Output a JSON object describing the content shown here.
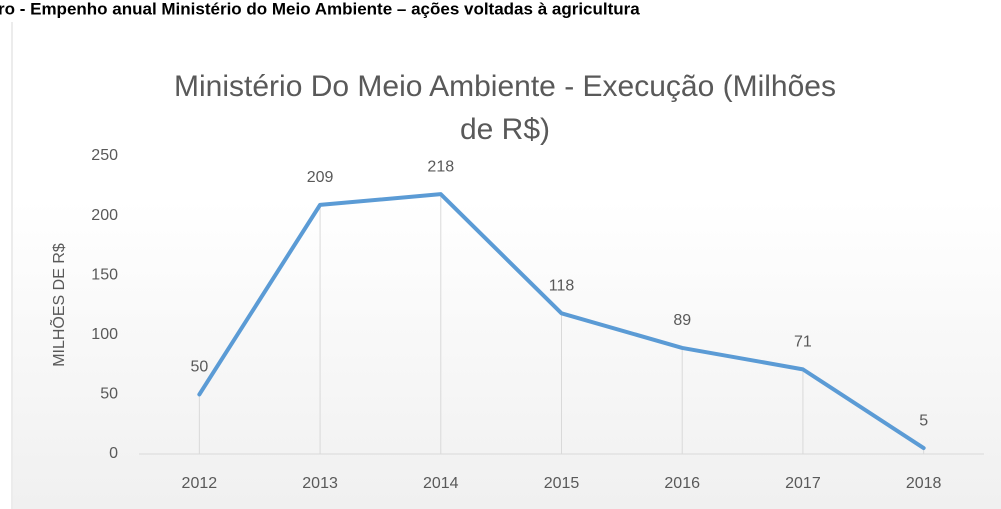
{
  "caption": "ro - Empenho anual Ministério do Meio Ambiente – ações voltadas à agricultura",
  "chart_data": {
    "type": "line",
    "title": [
      "Ministério Do Meio Ambiente - Execução (Milhões",
      "de R$)"
    ],
    "y_label": "MILHÕES DE R$",
    "categories": [
      "2012",
      "2013",
      "2014",
      "2015",
      "2016",
      "2017",
      "2018"
    ],
    "values": [
      50,
      209,
      218,
      118,
      89,
      71,
      5
    ],
    "color": "#5b9bd5",
    "ylim": [
      0,
      250
    ],
    "yticks": [
      0,
      50,
      100,
      150,
      200,
      250
    ],
    "drop_lines": true
  }
}
